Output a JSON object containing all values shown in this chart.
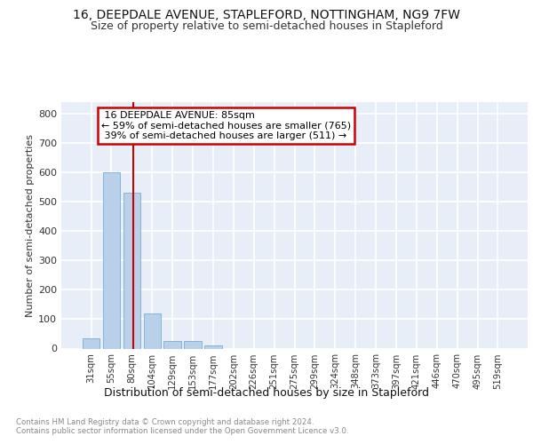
{
  "title1": "16, DEEPDALE AVENUE, STAPLEFORD, NOTTINGHAM, NG9 7FW",
  "title2": "Size of property relative to semi-detached houses in Stapleford",
  "xlabel": "Distribution of semi-detached houses by size in Stapleford",
  "ylabel": "Number of semi-detached properties",
  "categories": [
    "31sqm",
    "55sqm",
    "80sqm",
    "104sqm",
    "129sqm",
    "153sqm",
    "177sqm",
    "202sqm",
    "226sqm",
    "251sqm",
    "275sqm",
    "299sqm",
    "324sqm",
    "348sqm",
    "373sqm",
    "397sqm",
    "421sqm",
    "446sqm",
    "470sqm",
    "495sqm",
    "519sqm"
  ],
  "values": [
    35,
    600,
    530,
    120,
    25,
    25,
    10,
    0,
    0,
    0,
    0,
    0,
    0,
    0,
    0,
    0,
    0,
    0,
    0,
    0,
    0
  ],
  "bar_color": "#b8d0ea",
  "bar_edge_color": "#7aadd4",
  "property_label": "16 DEEPDALE AVENUE: 85sqm",
  "pct_smaller": 59,
  "n_smaller": 765,
  "pct_larger": 39,
  "n_larger": 511,
  "vline_color": "#cc0000",
  "annotation_box_color": "#cc0000",
  "ylim": [
    0,
    840
  ],
  "yticks": [
    0,
    100,
    200,
    300,
    400,
    500,
    600,
    700,
    800
  ],
  "background_color": "#e8eef8",
  "grid_color": "#ffffff",
  "footer_text": "Contains HM Land Registry data © Crown copyright and database right 2024.\nContains public sector information licensed under the Open Government Licence v3.0.",
  "title1_fontsize": 10,
  "title2_fontsize": 9,
  "xlabel_fontsize": 9,
  "ylabel_fontsize": 8,
  "vline_bar_index": 2.05
}
